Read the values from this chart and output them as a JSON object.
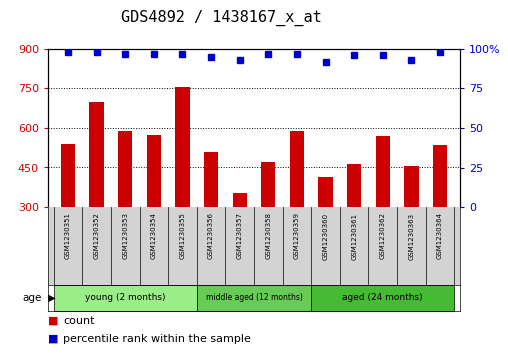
{
  "title": "GDS4892 / 1438167_x_at",
  "samples": [
    "GSM1230351",
    "GSM1230352",
    "GSM1230353",
    "GSM1230354",
    "GSM1230355",
    "GSM1230356",
    "GSM1230357",
    "GSM1230358",
    "GSM1230359",
    "GSM1230360",
    "GSM1230361",
    "GSM1230362",
    "GSM1230363",
    "GSM1230364"
  ],
  "bar_values": [
    540,
    700,
    590,
    575,
    755,
    510,
    355,
    470,
    590,
    415,
    465,
    570,
    455,
    535
  ],
  "percentile_values": [
    98,
    98,
    97,
    97,
    97,
    95,
    93,
    97,
    97,
    92,
    96,
    96,
    93,
    98
  ],
  "bar_color": "#cc0000",
  "percentile_color": "#0000cc",
  "ylim_left": [
    300,
    900
  ],
  "ylim_right": [
    0,
    100
  ],
  "yticks_left": [
    300,
    450,
    600,
    750,
    900
  ],
  "yticks_right": [
    0,
    25,
    50,
    75,
    100
  ],
  "grid_values": [
    450,
    600,
    750
  ],
  "groups": [
    {
      "label": "young (2 months)",
      "start": 0,
      "end": 5,
      "color": "#99ee88"
    },
    {
      "label": "middle aged (12 months)",
      "start": 5,
      "end": 9,
      "color": "#66cc55"
    },
    {
      "label": "aged (24 months)",
      "start": 9,
      "end": 14,
      "color": "#44bb33"
    }
  ],
  "age_label": "age",
  "legend_count_label": "count",
  "legend_pct_label": "percentile rank within the sample",
  "legend_count_color": "#cc0000",
  "legend_pct_color": "#0000cc",
  "title_fontsize": 11,
  "tick_fontsize": 8,
  "axis_color_left": "#cc0000",
  "axis_color_right": "#0000cc",
  "sample_label_bg": "#d3d3d3",
  "plot_bg": "#ffffff",
  "bar_width": 0.5
}
